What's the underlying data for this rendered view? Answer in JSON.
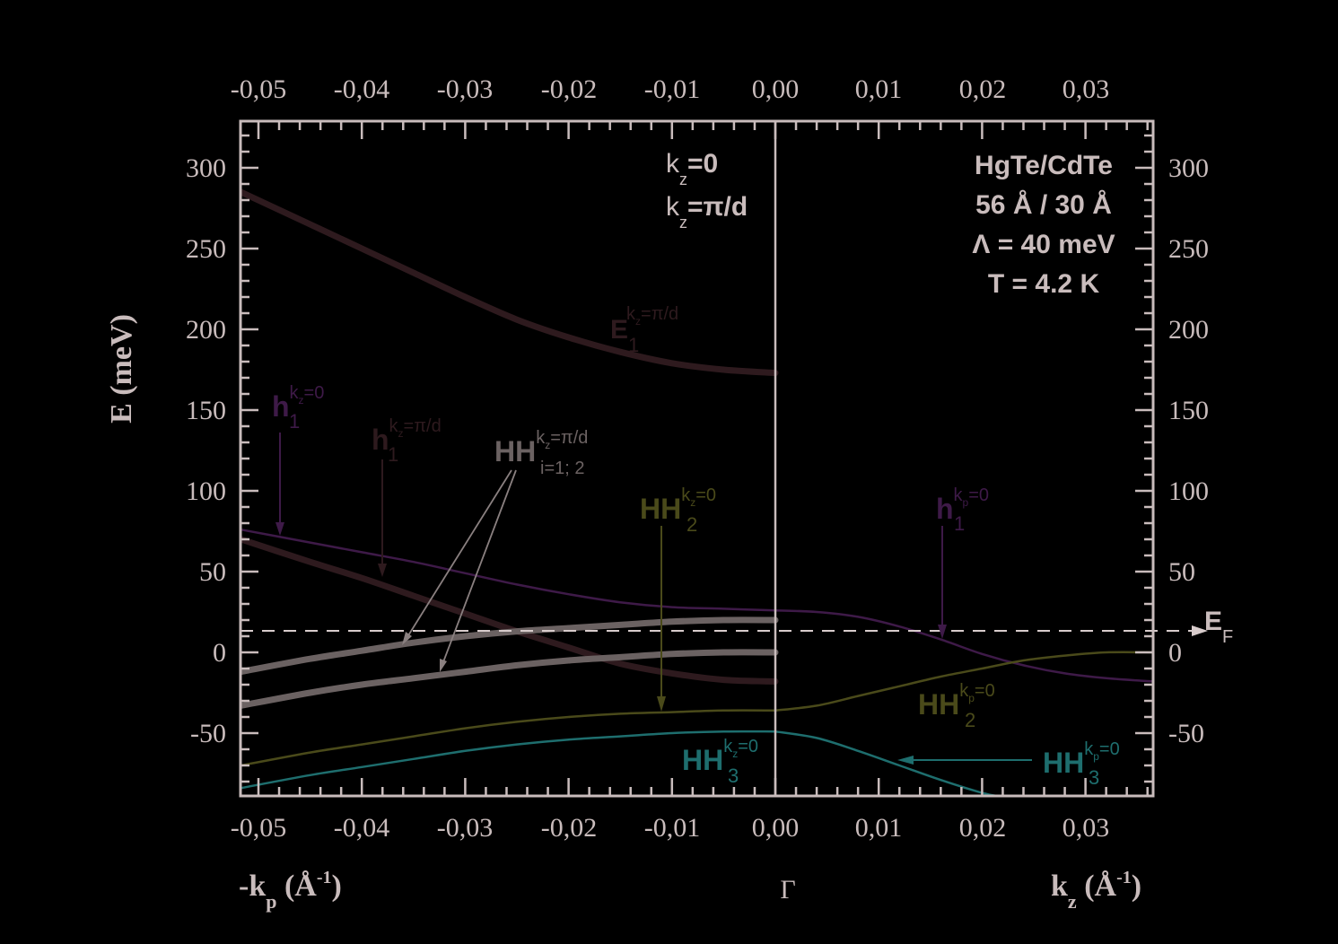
{
  "chart_data": {
    "type": "line",
    "title": "",
    "xlabel_left": "-k_p (Å^-1)",
    "xlabel_right": "k_z (Å^-1)",
    "xlabel_center": "Γ",
    "ylabel": "E (meV)",
    "ylim": [
      -89,
      329
    ],
    "xlim_left": [
      -0.0517,
      0.0
    ],
    "xlim_right": [
      0.0,
      0.0365
    ],
    "x_ticks": [
      "-0,05",
      "-0,04",
      "-0,03",
      "-0,02",
      "-0,01",
      "0,00",
      "0,01",
      "0,02",
      "0,03"
    ],
    "y_ticks": [
      "-50",
      "0",
      "50",
      "100",
      "150",
      "200",
      "250",
      "300"
    ],
    "fermi_level_meV": 13.5,
    "fermi_label": "E_F",
    "grid": false,
    "series": [
      {
        "name": "E1 (kz=π/d)",
        "panel": "left",
        "color": "#2e1a1e",
        "width": 7,
        "x": [
          -0.0517,
          -0.045,
          -0.04,
          -0.035,
          -0.03,
          -0.025,
          -0.02,
          -0.015,
          -0.01,
          -0.005,
          0.0
        ],
        "y": [
          285,
          265,
          250,
          235,
          220,
          206,
          195,
          186,
          179,
          175,
          173
        ]
      },
      {
        "name": "h1 (kz=0)",
        "panel": "left",
        "color": "#3e1a48",
        "width": 2.5,
        "x": [
          -0.0517,
          -0.045,
          -0.04,
          -0.035,
          -0.03,
          -0.025,
          -0.02,
          -0.015,
          -0.01,
          -0.005,
          0.0
        ],
        "y": [
          76,
          68,
          62,
          56,
          49,
          42,
          36,
          31,
          28,
          27,
          26
        ]
      },
      {
        "name": "h1 (kz=π/d)",
        "panel": "left",
        "color": "#2e1a1e",
        "width": 7,
        "x": [
          -0.0517,
          -0.045,
          -0.04,
          -0.035,
          -0.03,
          -0.025,
          -0.02,
          -0.015,
          -0.01,
          -0.005,
          0.0
        ],
        "y": [
          70,
          56,
          46,
          35,
          24,
          13,
          3,
          -7,
          -13,
          -17,
          -18
        ]
      },
      {
        "name": "HH1 (kz=π/d)",
        "panel": "left",
        "color": "#6b6262",
        "width": 7,
        "x": [
          -0.0517,
          -0.045,
          -0.04,
          -0.035,
          -0.03,
          -0.025,
          -0.02,
          -0.015,
          -0.01,
          -0.005,
          0.0
        ],
        "y": [
          -12,
          -4,
          1,
          6,
          10,
          13,
          15,
          17,
          19,
          20,
          20
        ]
      },
      {
        "name": "HH2 (kz=π/d)",
        "panel": "left",
        "color": "#6b6262",
        "width": 7,
        "x": [
          -0.0517,
          -0.045,
          -0.04,
          -0.035,
          -0.03,
          -0.025,
          -0.02,
          -0.015,
          -0.01,
          -0.005,
          0.0
        ],
        "y": [
          -33,
          -25,
          -20,
          -16,
          -12,
          -8,
          -5,
          -3,
          -1,
          0,
          0
        ]
      },
      {
        "name": "HH2 (kz=0)",
        "panel": "left",
        "color": "#4a4a1a",
        "width": 2.5,
        "x": [
          -0.0517,
          -0.045,
          -0.04,
          -0.035,
          -0.03,
          -0.025,
          -0.02,
          -0.015,
          -0.01,
          -0.005,
          0.0
        ],
        "y": [
          -70,
          -62,
          -57,
          -52,
          -47,
          -43,
          -40,
          -38,
          -37,
          -36,
          -36
        ]
      },
      {
        "name": "HH3 (kz=0)",
        "panel": "left",
        "color": "#1e6e6e",
        "width": 2.5,
        "x": [
          -0.0517,
          -0.045,
          -0.04,
          -0.035,
          -0.03,
          -0.025,
          -0.02,
          -0.015,
          -0.01,
          -0.005,
          0.0
        ],
        "y": [
          -84,
          -76,
          -71,
          -66,
          -61,
          -57,
          -54,
          -52,
          -50,
          -49,
          -49
        ]
      },
      {
        "name": "h1 (kp=0)",
        "panel": "right",
        "color": "#3e1a48",
        "width": 2.5,
        "x": [
          0.0,
          0.004,
          0.008,
          0.012,
          0.016,
          0.02,
          0.024,
          0.028,
          0.032,
          0.0365
        ],
        "y": [
          26,
          25,
          22,
          16,
          8,
          -1,
          -8,
          -13,
          -16,
          -18
        ]
      },
      {
        "name": "HH2 (kp=0)",
        "panel": "right",
        "color": "#4a4a1a",
        "width": 2.5,
        "x": [
          0.0,
          0.004,
          0.008,
          0.012,
          0.016,
          0.02,
          0.024,
          0.028,
          0.032,
          0.0365
        ],
        "y": [
          -36,
          -33,
          -27,
          -21,
          -15,
          -10,
          -5,
          -2,
          0,
          0
        ]
      },
      {
        "name": "HH3 (kp=0)",
        "panel": "right",
        "color": "#1e6e6e",
        "width": 2.5,
        "x": [
          0.0,
          0.004,
          0.008,
          0.012,
          0.016,
          0.02,
          0.0215
        ],
        "y": [
          -49,
          -53,
          -61,
          -70,
          -79,
          -87,
          -89
        ]
      }
    ],
    "annotations": [
      {
        "text": "k_z=0",
        "pos": "top-center-left"
      },
      {
        "text": "k_z=π/d",
        "pos": "top-center-left"
      },
      {
        "text": "HgTe/CdTe",
        "pos": "top-right"
      },
      {
        "text": "56 Å / 30 Å",
        "pos": "top-right"
      },
      {
        "text": "Λ = 40 meV",
        "pos": "top-right"
      },
      {
        "text": "T = 4.2 K",
        "pos": "top-right"
      }
    ]
  },
  "axes": {
    "x_tick_labels": [
      "-0,05",
      "-0,04",
      "-0,03",
      "-0,02",
      "-0,01",
      "0,00",
      "0,01",
      "0,02",
      "0,03"
    ],
    "y_tick_labels": [
      "300",
      "250",
      "200",
      "150",
      "100",
      "50",
      "0",
      "-50"
    ],
    "ylabel": "E (meV)",
    "xlabel_left_main": "-k",
    "xlabel_left_sub": "p",
    "xlabel_left_unit": " (Å",
    "xlabel_left_sup": "-1",
    "xlabel_left_close": ")",
    "xlabel_center": "Γ",
    "xlabel_right_main": "k",
    "xlabel_right_sub": "z",
    "xlabel_right_unit": " (Å",
    "xlabel_right_sup": "-1",
    "xlabel_right_close": ")"
  },
  "legend_block": {
    "line1_k": "k",
    "line1_sub": "z",
    "line1_rest": "=0",
    "line2_k": "k",
    "line2_sub": "z",
    "line2_rest": "=π/d"
  },
  "info_block": {
    "material": "HgTe/CdTe",
    "thickness": "56 Å / 30 Å",
    "lambda": "Λ = 40 meV",
    "temperature": "T = 4.2 K"
  },
  "labels": {
    "E1": {
      "main": "E",
      "sub": "1",
      "sup_k": "k",
      "sup_sub": "z",
      "sup_rest": "=π/d"
    },
    "h1_kz0": {
      "main": "h",
      "sub": "1",
      "sup_k": "k",
      "sup_sub": "z",
      "sup_rest": "=0"
    },
    "h1_kzpi": {
      "main": "h",
      "sub": "1",
      "sup_k": "k",
      "sup_sub": "z",
      "sup_rest": "=π/d"
    },
    "HH_i": {
      "main": "HH",
      "sub": "i=1; 2",
      "sup_k": "k",
      "sup_sub": "z",
      "sup_rest": "=π/d"
    },
    "HH2_kz0": {
      "main": "HH",
      "sub": "2",
      "sup_k": "k",
      "sup_sub": "z",
      "sup_rest": "=0"
    },
    "h1_kp0": {
      "main": "h",
      "sub": "1",
      "sup_k": "k",
      "sup_sub": "p",
      "sup_rest": "=0"
    },
    "HH2_kp0": {
      "main": "HH",
      "sub": "2",
      "sup_k": "k",
      "sup_sub": "p",
      "sup_rest": "=0"
    },
    "HH3_kz0": {
      "main": "HH",
      "sub": "3",
      "sup_k": "k",
      "sup_sub": "z",
      "sup_rest": "=0"
    },
    "HH3_kp0": {
      "main": "HH",
      "sub": "3",
      "sup_k": "k",
      "sup_sub": "p",
      "sup_rest": "=0"
    },
    "EF": {
      "main": "E",
      "sub": "F"
    }
  },
  "colors": {
    "axis": "#c9bcbc",
    "E1": "#2e1a1e",
    "h1": "#3e1a48",
    "HH_pi": "#6b6262",
    "HH2": "#4a4a1a",
    "HH3": "#1e6e6e",
    "fermi": "#d8cccc"
  }
}
